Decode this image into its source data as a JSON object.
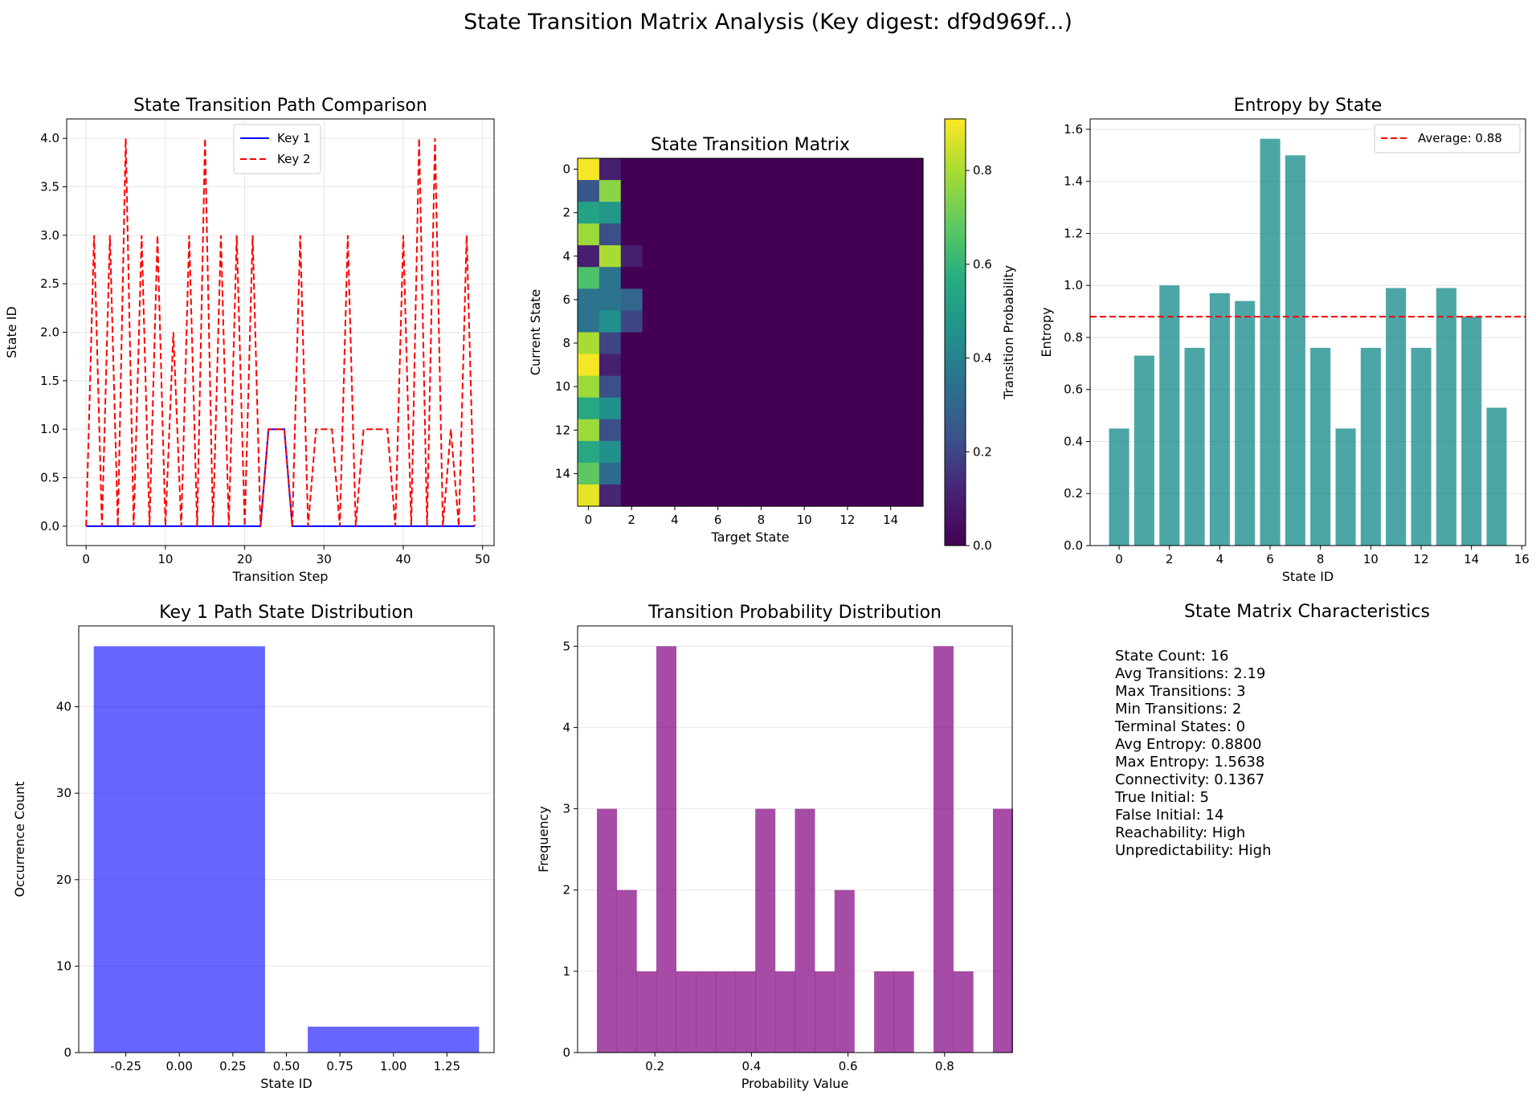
{
  "page": {
    "suptitle": "State Transition Matrix Analysis (Key digest: df9d969f...)"
  },
  "chart_data": [
    {
      "id": "path",
      "type": "line",
      "title": "State Transition Path Comparison",
      "xlabel": "Transition Step",
      "ylabel": "State ID",
      "xlim": [
        -2.45,
        51.45
      ],
      "ylim": [
        -0.2,
        4.2
      ],
      "xticks": [
        0,
        10,
        20,
        30,
        40,
        50
      ],
      "yticks": [
        0,
        0.5,
        1,
        1.5,
        2,
        2.5,
        3,
        3.5,
        4
      ],
      "ytick_format": "1",
      "grid": true,
      "legend": "upper center",
      "series": [
        {
          "name": "Key 1",
          "color": "#0000ff",
          "dash": "",
          "x": [
            0,
            1,
            2,
            3,
            4,
            5,
            6,
            7,
            8,
            9,
            10,
            11,
            12,
            13,
            14,
            15,
            16,
            17,
            18,
            19,
            20,
            21,
            22,
            23,
            24,
            25,
            26,
            27,
            28,
            29,
            30,
            31,
            32,
            33,
            34,
            35,
            36,
            37,
            38,
            39,
            40,
            41,
            42,
            43,
            44,
            45,
            46,
            47,
            48,
            49
          ],
          "y": [
            0,
            0,
            0,
            0,
            0,
            0,
            0,
            0,
            0,
            0,
            0,
            0,
            0,
            0,
            0,
            0,
            0,
            0,
            0,
            0,
            0,
            0,
            0,
            1,
            1,
            1,
            0,
            0,
            0,
            0,
            0,
            0,
            0,
            0,
            0,
            0,
            0,
            0,
            0,
            0,
            0,
            0,
            0,
            0,
            0,
            0,
            0,
            0,
            0,
            0
          ]
        },
        {
          "name": "Key 2",
          "color": "#ff0000",
          "dash": "8 4",
          "x": [
            0,
            1,
            2,
            3,
            4,
            5,
            6,
            7,
            8,
            9,
            10,
            11,
            12,
            13,
            14,
            15,
            16,
            17,
            18,
            19,
            20,
            21,
            22,
            23,
            24,
            25,
            26,
            27,
            28,
            29,
            30,
            31,
            32,
            33,
            34,
            35,
            36,
            37,
            38,
            39,
            40,
            41,
            42,
            43,
            44,
            45,
            46,
            47,
            48,
            49
          ],
          "y": [
            0,
            3,
            0,
            3,
            0,
            4,
            0,
            3,
            0,
            3,
            0,
            2,
            0,
            3,
            0,
            4,
            0,
            3,
            0,
            3,
            0,
            3,
            0,
            1,
            1,
            1,
            0,
            3,
            0,
            1,
            1,
            1,
            0,
            3,
            0,
            1,
            1,
            1,
            1,
            0,
            3,
            0,
            4,
            0,
            4,
            0,
            1,
            0,
            3,
            0
          ]
        }
      ]
    },
    {
      "id": "heatmap",
      "type": "heatmap",
      "title": "State Transition Matrix",
      "xlabel": "Target State",
      "ylabel": "Current State",
      "colorbar_label": "Transition Probability",
      "xticks": [
        0,
        2,
        4,
        6,
        8,
        10,
        12,
        14
      ],
      "yticks": [
        0,
        2,
        4,
        6,
        8,
        10,
        12,
        14
      ],
      "cbar_ticks": [
        0,
        0.2,
        0.4,
        0.6,
        0.8
      ],
      "vmin": 0,
      "vmax": 0.91,
      "size": 16,
      "rows": [
        [
          0.9,
          0.1,
          0.0
        ],
        [
          0.25,
          0.75,
          0.0
        ],
        [
          0.52,
          0.48,
          0.0
        ],
        [
          0.78,
          0.22,
          0.0
        ],
        [
          0.1,
          0.8,
          0.1
        ],
        [
          0.65,
          0.35,
          0.0
        ],
        [
          0.35,
          0.35,
          0.3
        ],
        [
          0.35,
          0.45,
          0.2
        ],
        [
          0.8,
          0.2,
          0.0
        ],
        [
          0.9,
          0.1,
          0.0
        ],
        [
          0.78,
          0.22,
          0.0
        ],
        [
          0.55,
          0.45,
          0.0
        ],
        [
          0.78,
          0.22,
          0.0
        ],
        [
          0.55,
          0.45,
          0.0
        ],
        [
          0.68,
          0.32,
          0.0
        ],
        [
          0.88,
          0.12,
          0.0
        ]
      ]
    },
    {
      "id": "entropy",
      "type": "bar",
      "title": "Entropy by State",
      "xlabel": "State ID",
      "ylabel": "Entropy",
      "color": "#008080",
      "opacity": 0.7,
      "categories": [
        0,
        1,
        2,
        3,
        4,
        5,
        6,
        7,
        8,
        9,
        10,
        11,
        12,
        13,
        14,
        15
      ],
      "values": [
        0.45,
        0.73,
        1.0,
        0.76,
        0.97,
        0.94,
        1.5638,
        1.5,
        0.76,
        0.45,
        0.76,
        0.99,
        0.76,
        0.99,
        0.88,
        0.53
      ],
      "xlim": [
        -1.15,
        16.15
      ],
      "ylim": [
        0,
        1.64
      ],
      "xticks": [
        0,
        2,
        4,
        6,
        8,
        10,
        12,
        14,
        16
      ],
      "yticks": [
        0,
        0.2,
        0.4,
        0.6,
        0.8,
        1.0,
        1.2,
        1.4,
        1.6
      ],
      "ytick_format": "1",
      "average_line": {
        "value": 0.88,
        "label": "Average: 0.88",
        "color": "#ff0000"
      },
      "legend": "upper right",
      "grid_y": true
    },
    {
      "id": "dist",
      "type": "bar",
      "title": "Key 1 Path State Distribution",
      "xlabel": "State ID",
      "ylabel": "Occurrence Count",
      "color": "#0000ff",
      "opacity": 0.6,
      "categories": [
        0,
        1
      ],
      "values": [
        47,
        3
      ],
      "bar_width": 0.8,
      "xlim": [
        -0.47,
        1.47
      ],
      "ylim": [
        0,
        49.35
      ],
      "xticks": [
        -0.25,
        0,
        0.25,
        0.5,
        0.75,
        1.0,
        1.25
      ],
      "xtick_format": "2",
      "yticks": [
        0,
        10,
        20,
        30,
        40
      ],
      "grid_y": true
    },
    {
      "id": "hist",
      "type": "bar",
      "title": "Transition Probability Distribution",
      "xlabel": "Probability Value",
      "ylabel": "Frequency",
      "color": "#800080",
      "opacity": 0.7,
      "bin_start": 0.08,
      "bin_width": 0.041,
      "counts": [
        3,
        2,
        1,
        5,
        1,
        1,
        1,
        1,
        3,
        1,
        3,
        1,
        2,
        0,
        1,
        1,
        0,
        5,
        1,
        0,
        3
      ],
      "xlim": [
        0.04,
        0.94
      ],
      "ylim": [
        0,
        5.25
      ],
      "xticks": [
        0.2,
        0.4,
        0.6,
        0.8
      ],
      "xtick_format": "1",
      "yticks": [
        0,
        1,
        2,
        3,
        4,
        5
      ],
      "grid_y": true
    }
  ],
  "stats": {
    "title": "State Matrix Characteristics",
    "lines": [
      "State Count: 16",
      "Avg Transitions: 2.19",
      "Max Transitions: 3",
      "Min Transitions: 2",
      "Terminal States: 0",
      "Avg Entropy: 0.8800",
      "Max Entropy: 1.5638",
      "Connectivity: 0.1367",
      "True Initial: 5",
      "False Initial: 14",
      "Reachability: High",
      "Unpredictability: High"
    ]
  }
}
